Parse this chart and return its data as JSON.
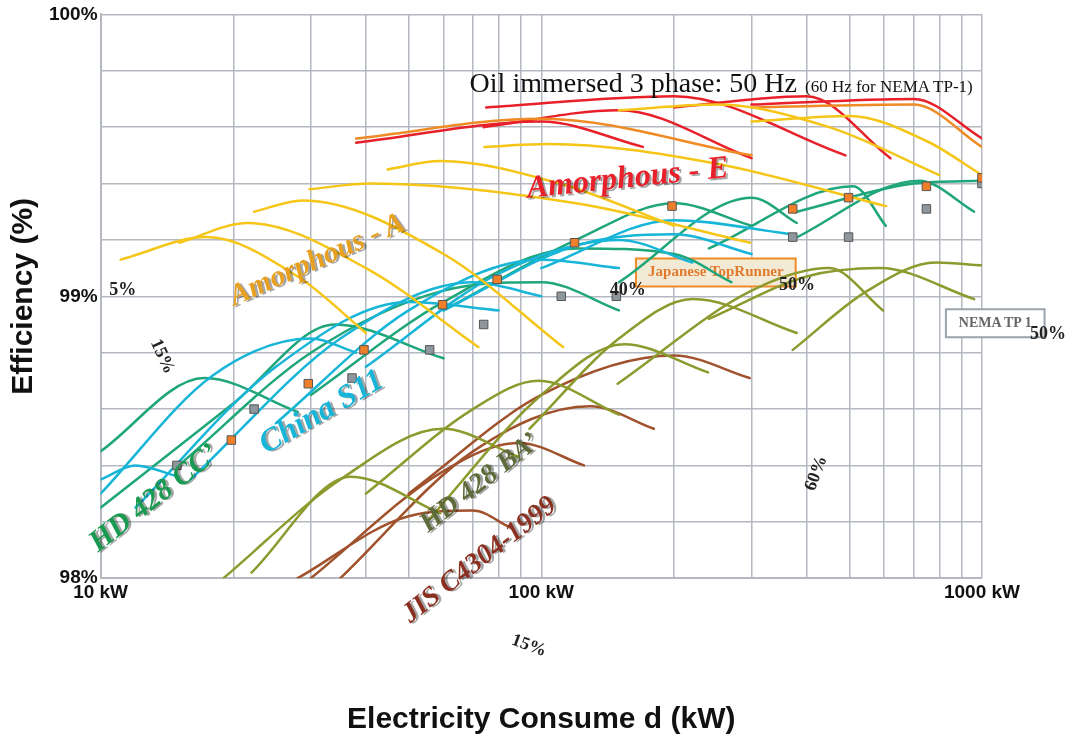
{
  "chart_data": {
    "type": "line",
    "title": "Oil immersed 3 phase: 50 Hz",
    "subtitle": "(60 Hz for NEMA TP-1)",
    "xlabel": "Electricity Consume d (kW)",
    "ylabel": "Efficiency (%)",
    "log": "x",
    "grid": true,
    "legend": false,
    "marker": "none",
    "line_style": "solid",
    "xlim": [
      10,
      1000
    ],
    "ylim": [
      98,
      100
    ],
    "xticks": [
      {
        "value": 10,
        "label": "10 kW"
      },
      {
        "value": 20,
        "label": null
      },
      {
        "value": 30,
        "label": null
      },
      {
        "value": 40,
        "label": null
      },
      {
        "value": 50,
        "label": null
      },
      {
        "value": 60,
        "label": null
      },
      {
        "value": 70,
        "label": null
      },
      {
        "value": 80,
        "label": null
      },
      {
        "value": 90,
        "label": null
      },
      {
        "value": 100,
        "label": "100 kW"
      },
      {
        "value": 200,
        "label": null
      },
      {
        "value": 300,
        "label": null
      },
      {
        "value": 400,
        "label": null
      },
      {
        "value": 500,
        "label": null
      },
      {
        "value": 600,
        "label": null
      },
      {
        "value": 700,
        "label": null
      },
      {
        "value": 800,
        "label": null
      },
      {
        "value": 900,
        "label": null
      },
      {
        "value": 1000,
        "label": "1000 kW"
      }
    ],
    "yticks": [
      {
        "value": 98,
        "label": "98%"
      },
      {
        "value": 98.2,
        "label": null
      },
      {
        "value": 98.4,
        "label": null
      },
      {
        "value": 98.6,
        "label": null
      },
      {
        "value": 98.8,
        "label": null
      },
      {
        "value": 99,
        "label": "99%"
      },
      {
        "value": 99.2,
        "label": null
      },
      {
        "value": 99.4,
        "label": null
      },
      {
        "value": 99.6,
        "label": null
      },
      {
        "value": 99.8,
        "label": null
      },
      {
        "value": 100,
        "label": "100%"
      }
    ],
    "series": [
      {
        "color": "#f5c518",
        "x": [
          11.1,
          17.4,
          28,
          40
        ],
        "values": [
          99.13,
          99.21,
          99.07,
          98.87
        ]
      },
      {
        "color": "#f5c518",
        "x": [
          15.1,
          21.6,
          40,
          72
        ],
        "values": [
          99.19,
          99.26,
          99.1,
          98.82
        ]
      },
      {
        "color": "#f5c518",
        "x": [
          22.3,
          28.7,
          60,
          112
        ],
        "values": [
          99.3,
          99.34,
          99.15,
          98.82
        ]
      },
      {
        "color": "#f5c518",
        "x": [
          29.8,
          41,
          120,
          298
        ],
        "values": [
          99.38,
          99.4,
          99.33,
          99.19
        ]
      },
      {
        "color": "#f5c518",
        "x": [
          44.8,
          58.9,
          110,
          200
        ],
        "values": [
          99.45,
          99.48,
          99.4,
          99.25
        ]
      },
      {
        "color": "#f5c518",
        "x": [
          74.3,
          104,
          250,
          606
        ],
        "values": [
          99.53,
          99.54,
          99.47,
          99.32
        ]
      },
      {
        "color": "#f5c518",
        "x": [
          300,
          500,
          750,
          1000
        ],
        "values": [
          99.62,
          99.64,
          99.55,
          99.43
        ]
      },
      {
        "color": "#f5c518",
        "x": [
          150,
          250,
          450,
          800
        ],
        "values": [
          99.66,
          99.68,
          99.6,
          99.43
        ]
      },
      {
        "color": "#f08a24",
        "x": [
          38,
          100,
          300
        ],
        "values": [
          99.56,
          99.63,
          99.5
        ]
      },
      {
        "color": "#f08a24",
        "x": [
          300,
          700,
          1000
        ],
        "values": [
          99.67,
          99.68,
          99.53
        ]
      },
      {
        "color": "#e8202a",
        "x": [
          38,
          100,
          170
        ],
        "values": [
          99.545,
          99.62,
          99.53
        ]
      },
      {
        "color": "#e8202a",
        "x": [
          74,
          150,
          300
        ],
        "values": [
          99.6,
          99.66,
          99.49
        ]
      },
      {
        "color": "#e8202a",
        "x": [
          75,
          200,
          490
        ],
        "values": [
          99.67,
          99.71,
          99.5
        ]
      },
      {
        "color": "#e8202a",
        "x": [
          200,
          400,
          620
        ],
        "values": [
          99.67,
          99.71,
          99.49
        ]
      },
      {
        "color": "#e8202a",
        "x": [
          300,
          700,
          1000
        ],
        "values": [
          99.68,
          99.7,
          99.56
        ]
      },
      {
        "color": "#8c9a2e",
        "x": [
          22,
          37,
          59
        ],
        "values": [
          98.02,
          98.36,
          98.23
        ]
      },
      {
        "color": "#8c9a2e",
        "x": [
          19,
          35,
          59.8,
          89
        ],
        "values": [
          98,
          98.35,
          98.53,
          98.43
        ]
      },
      {
        "color": "#8c9a2e",
        "x": [
          40,
          70,
          98.5,
          150
        ],
        "values": [
          98.3,
          98.6,
          98.7,
          98.58
        ]
      },
      {
        "color": "#8c9a2e",
        "x": [
          55,
          100,
          154,
          239
        ],
        "values": [
          98.2,
          98.65,
          98.83,
          98.73
        ]
      },
      {
        "color": "#8c9a2e",
        "x": [
          94,
          150,
          221,
          380
        ],
        "values": [
          98.53,
          98.85,
          98.99,
          98.87
        ]
      },
      {
        "color": "#8c9a2e",
        "x": [
          149,
          300,
          450,
          596
        ],
        "values": [
          98.69,
          99.02,
          99.1,
          98.95
        ]
      },
      {
        "color": "#8c9a2e",
        "x": [
          372,
          550,
          786,
          1000
        ],
        "values": [
          98.81,
          99.02,
          99.12,
          99.11
        ]
      },
      {
        "color": "#8c9a2e",
        "x": [
          240,
          400,
          586,
          960
        ],
        "values": [
          98.92,
          99.07,
          99.1,
          98.99
        ]
      },
      {
        "color": "#a0522d",
        "x": [
          50,
          100,
          200,
          297
        ],
        "values": [
          98.3,
          98.65,
          98.79,
          98.71
        ]
      },
      {
        "color": "#a0522d",
        "x": [
          35,
          70,
          129,
          180
        ],
        "values": [
          98,
          98.45,
          98.61,
          98.53
        ]
      },
      {
        "color": "#a0522d",
        "x": [
          30,
          60,
          89,
          125
        ],
        "values": [
          98,
          98.38,
          98.48,
          98.4
        ]
      },
      {
        "color": "#a0522d",
        "x": [
          28,
          50,
          70,
          85
        ],
        "values": [
          98,
          98.22,
          98.24,
          98.18
        ]
      },
      {
        "color": "#17b5d8",
        "x": [
          10,
          12,
          15
        ],
        "values": [
          98.35,
          98.4,
          98.36
        ]
      },
      {
        "color": "#17b5d8",
        "x": [
          10,
          18,
          30,
          38
        ],
        "values": [
          98.3,
          98.72,
          98.85,
          98.8
        ]
      },
      {
        "color": "#17b5d8",
        "x": [
          12,
          25,
          50,
          80
        ],
        "values": [
          98.25,
          98.75,
          98.98,
          98.95
        ]
      },
      {
        "color": "#17b5d8",
        "x": [
          16,
          35,
          70,
          100
        ],
        "values": [
          98.35,
          98.85,
          99.05,
          99
        ]
      },
      {
        "color": "#17b5d8",
        "x": [
          25,
          50,
          100,
          150
        ],
        "values": [
          98.55,
          98.95,
          99.13,
          99.1
        ]
      },
      {
        "color": "#17b5d8",
        "x": [
          40,
          80,
          150,
          220
        ],
        "values": [
          98.75,
          99.08,
          99.2,
          99.12
        ]
      },
      {
        "color": "#17b5d8",
        "x": [
          60,
          120,
          200,
          300
        ],
        "values": [
          98.95,
          99.18,
          99.22,
          99.15
        ]
      },
      {
        "color": "#17b5d8",
        "x": [
          100,
          200,
          370
        ],
        "values": [
          99.1,
          99.27,
          99.22
        ]
      },
      {
        "color": "#1fa67a",
        "x": [
          10,
          17.2,
          28
        ],
        "values": [
          98.45,
          98.71,
          98.59
        ]
      },
      {
        "color": "#1fa67a",
        "x": [
          10,
          20,
          34,
          60
        ],
        "values": [
          98.25,
          98.62,
          98.9,
          98.78
        ]
      },
      {
        "color": "#1fa67a",
        "x": [
          15.3,
          30,
          60,
          100,
          150
        ],
        "values": [
          98.41,
          98.8,
          99.02,
          99.05,
          98.95
        ]
      },
      {
        "color": "#1fa67a",
        "x": [
          30,
          60,
          120,
          200,
          270
        ],
        "values": [
          98.65,
          98.98,
          99.17,
          99.15,
          99.05
        ]
      },
      {
        "color": "#1fa67a",
        "x": [
          60,
          120,
          200,
          300
        ],
        "values": [
          98.95,
          99.2,
          99.33,
          99.25
        ]
      },
      {
        "color": "#1fa67a",
        "x": [
          150,
          300,
          380
        ],
        "values": [
          99.05,
          99.35,
          99.26
        ]
      },
      {
        "color": "#1fa67a",
        "x": [
          240,
          510,
          605
        ],
        "values": [
          99.17,
          99.39,
          99.25
        ]
      },
      {
        "color": "#1fa67a",
        "x": [
          370,
          720,
          960
        ],
        "values": [
          99.2,
          99.41,
          99.3
        ]
      },
      {
        "color": "#1fa67a",
        "x": [
          380,
          700,
          1000
        ],
        "values": [
          99.3,
          99.4,
          99.41
        ]
      },
      {
        "type": "scatter",
        "marker": "square",
        "color": "#f07f2a",
        "x": [
          19.8,
          29.6,
          39.6,
          59.7,
          79.4,
          119,
          198,
          372,
          498,
          748,
          1000
        ],
        "values": [
          98.49,
          98.69,
          98.81,
          98.97,
          99.06,
          99.19,
          99.32,
          99.31,
          99.35,
          99.39,
          99.42
        ]
      },
      {
        "type": "scatter",
        "marker": "square",
        "color": "#8e969e",
        "x": [
          14.9,
          22.3,
          37.2,
          55.8,
          74,
          111,
          148,
          372,
          498,
          748,
          1000
        ],
        "values": [
          98.4,
          98.6,
          98.71,
          98.81,
          98.9,
          99,
          99,
          99.21,
          99.21,
          99.31,
          99.4
        ]
      }
    ],
    "annotations": [
      "Amorphous - E",
      "Amorphous - A",
      "China S11",
      "HD 428 CC’",
      "HD 428 BA’",
      "JIS C4304-1999",
      "Japanese TopRunner",
      "NEMA TP 1",
      "15%",
      "40%",
      "50%",
      "60%",
      "50%",
      "15%",
      "5%"
    ]
  }
}
